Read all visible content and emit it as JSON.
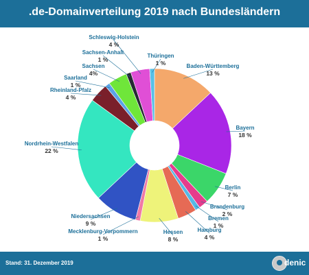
{
  "header": {
    "title": ".de-Domainverteilung 2019 nach Bundesländern"
  },
  "footer": {
    "text": "Stand: 31. Dezember 2019",
    "logo_text": "denic"
  },
  "colors": {
    "header_bg": "#1c6f99",
    "label": "#1c6f99",
    "value_text": "#333333",
    "background": "#ffffff"
  },
  "chart_data": {
    "type": "pie",
    "variant": "donut",
    "title": ".de-Domainverteilung 2019 nach Bundesländern",
    "categories": [
      "Baden-Württemberg",
      "Bayern",
      "Berlin",
      "Brandenburg",
      "Bremen",
      "Hamburg",
      "Hessen",
      "Mecklenburg-Vorpommern",
      "Niedersachsen",
      "Nordrhein-Westfalen",
      "Rheinland-Pfalz",
      "Saarland",
      "Sachsen",
      "Sachsen-Anhalt",
      "Schleswig-Holstein",
      "Thüringen"
    ],
    "values": [
      13,
      18,
      7,
      2,
      1,
      4,
      8,
      1,
      9,
      22,
      4,
      1,
      4,
      1,
      4,
      1
    ],
    "value_labels": [
      "13 %",
      "18 %",
      "7 %",
      "2 %",
      "1 %",
      "4 %",
      "8 %",
      "1 %",
      "9 %",
      "22 %",
      "4 %",
      "1 %",
      "4%",
      "1 %",
      "4 %",
      "1 %"
    ],
    "colors": [
      "#f4a86b",
      "#a926e6",
      "#3bd669",
      "#e63c8c",
      "#56b8e6",
      "#e66a55",
      "#eef37a",
      "#f07aa6",
      "#3053c4",
      "#34e6c0",
      "#7a1f2a",
      "#5aa3e6",
      "#6fe63a",
      "#262a33",
      "#e04fd6",
      "#58c0e6"
    ],
    "legend": "none"
  }
}
